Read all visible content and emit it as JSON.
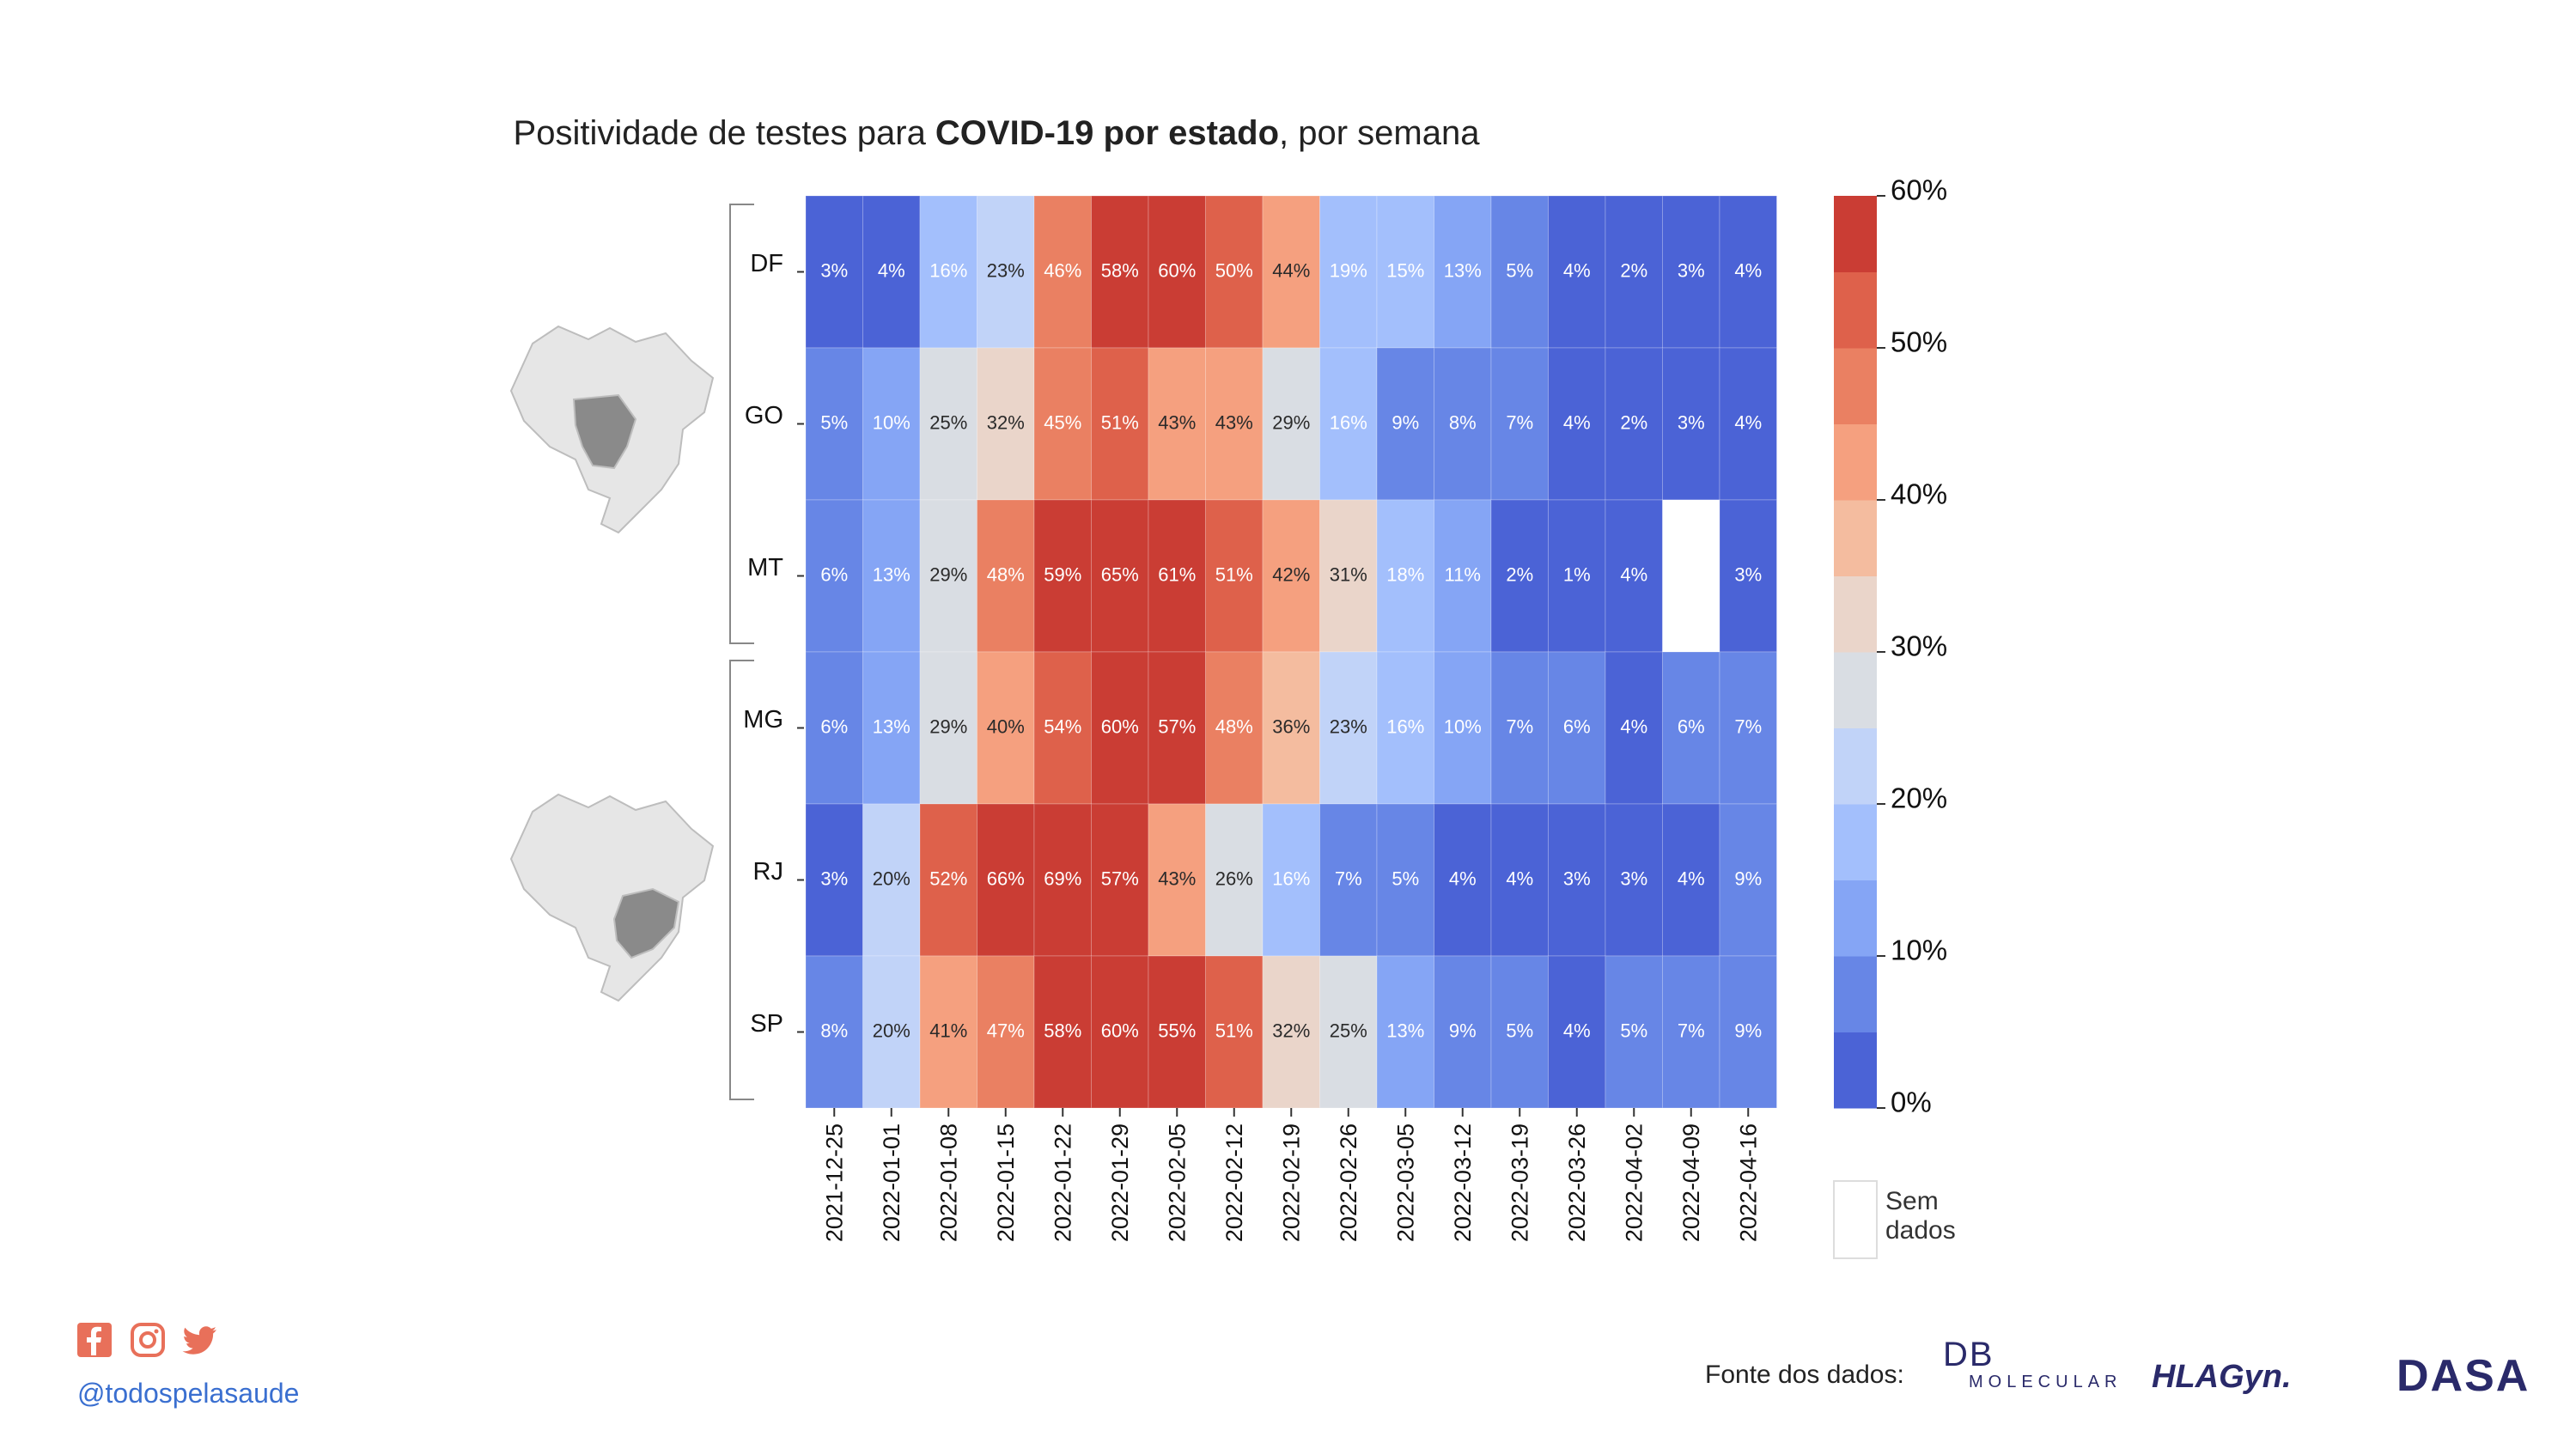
{
  "title": {
    "prefix": "Positividade de testes para ",
    "bold": "COVID-19 por estado",
    "suffix": ", por semana"
  },
  "chart_data": {
    "type": "heatmap",
    "x": [
      "2021-12-25",
      "2022-01-01",
      "2022-01-08",
      "2022-01-15",
      "2022-01-22",
      "2022-01-29",
      "2022-02-05",
      "2022-02-12",
      "2022-02-19",
      "2022-02-26",
      "2022-03-05",
      "2022-03-12",
      "2022-03-19",
      "2022-03-26",
      "2022-04-02",
      "2022-04-09",
      "2022-04-16"
    ],
    "y": [
      "DF",
      "GO",
      "MT",
      "MG",
      "RJ",
      "SP"
    ],
    "values": [
      [
        3,
        4,
        16,
        23,
        46,
        58,
        60,
        50,
        44,
        19,
        15,
        13,
        5,
        4,
        2,
        3,
        4
      ],
      [
        5,
        10,
        25,
        32,
        45,
        51,
        43,
        43,
        29,
        16,
        9,
        8,
        7,
        4,
        2,
        3,
        4
      ],
      [
        6,
        13,
        29,
        48,
        59,
        65,
        61,
        51,
        42,
        31,
        18,
        11,
        2,
        1,
        4,
        null,
        3
      ],
      [
        6,
        13,
        29,
        40,
        54,
        60,
        57,
        48,
        36,
        23,
        16,
        10,
        7,
        6,
        4,
        6,
        7
      ],
      [
        3,
        20,
        52,
        66,
        69,
        57,
        43,
        26,
        16,
        7,
        5,
        4,
        4,
        3,
        3,
        4,
        9
      ],
      [
        8,
        20,
        41,
        47,
        58,
        60,
        55,
        51,
        32,
        25,
        13,
        9,
        5,
        4,
        5,
        7,
        9
      ]
    ],
    "value_suffix": "%",
    "colorbar": {
      "ticks": [
        "0%",
        "10%",
        "20%",
        "30%",
        "40%",
        "50%",
        "60%"
      ],
      "range": [
        0,
        60
      ],
      "bins": 12,
      "colors": [
        "#4b63d6",
        "#6786e6",
        "#85a5f5",
        "#a3bffc",
        "#c1d3f8",
        "#d9dde3",
        "#ead5ca",
        "#f4bc9f",
        "#f5a07f",
        "#ea8062",
        "#de614b",
        "#ca3d34"
      ]
    },
    "no_data": {
      "color": "#ffffff",
      "label_line1": "Sem",
      "label_line2": "dados"
    },
    "groups": [
      {
        "rows": [
          "DF",
          "GO",
          "MT"
        ],
        "map": "brazil-map-center-west-icon"
      },
      {
        "rows": [
          "MG",
          "RJ",
          "SP"
        ],
        "map": "brazil-map-southeast-icon"
      }
    ]
  },
  "footer": {
    "handle": "@todospelasaude",
    "social_icons": [
      "facebook-icon",
      "instagram-icon",
      "twitter-icon"
    ],
    "social_color": "#e8705a",
    "source_label": "Fonte dos dados:",
    "logos": {
      "db_main": "DB",
      "db_sub": "MOLECULAR",
      "hla": "HLAGyn.",
      "dasa": "DASA"
    }
  }
}
